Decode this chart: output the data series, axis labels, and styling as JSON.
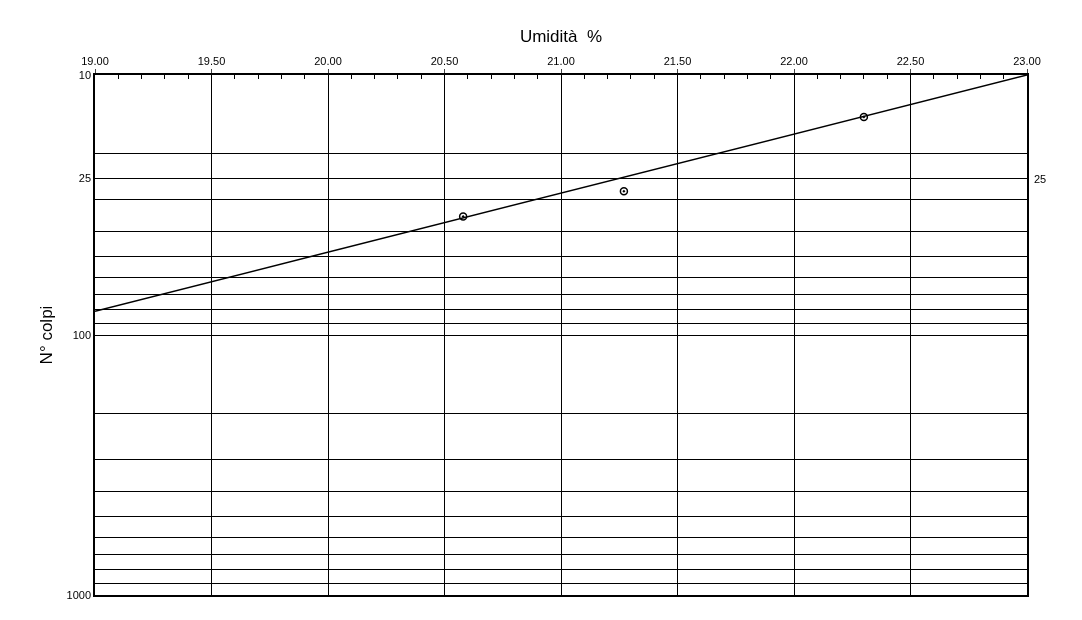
{
  "chart_data": {
    "type": "scatter",
    "xlabel": "Umidità  %",
    "ylabel": "N° colpi",
    "log": "y",
    "grid": true,
    "annotations": [
      "25"
    ],
    "xlim": [
      19,
      23
    ],
    "ylim": [
      1000,
      10
    ],
    "xticks": [
      {
        "value": 19,
        "label": "19.00"
      },
      {
        "value": 19.1,
        "label": null
      },
      {
        "value": 19.2,
        "label": null
      },
      {
        "value": 19.3,
        "label": null
      },
      {
        "value": 19.4,
        "label": null
      },
      {
        "value": 19.5,
        "label": "19.50"
      },
      {
        "value": 19.6,
        "label": null
      },
      {
        "value": 19.7,
        "label": null
      },
      {
        "value": 19.8,
        "label": null
      },
      {
        "value": 19.9,
        "label": null
      },
      {
        "value": 20,
        "label": "20.00"
      },
      {
        "value": 20.1,
        "label": null
      },
      {
        "value": 20.2,
        "label": null
      },
      {
        "value": 20.3,
        "label": null
      },
      {
        "value": 20.4,
        "label": null
      },
      {
        "value": 20.5,
        "label": "20.50"
      },
      {
        "value": 20.6,
        "label": null
      },
      {
        "value": 20.7,
        "label": null
      },
      {
        "value": 20.8,
        "label": null
      },
      {
        "value": 20.9,
        "label": null
      },
      {
        "value": 21,
        "label": "21.00"
      },
      {
        "value": 21.1,
        "label": null
      },
      {
        "value": 21.2,
        "label": null
      },
      {
        "value": 21.3,
        "label": null
      },
      {
        "value": 21.4,
        "label": null
      },
      {
        "value": 21.5,
        "label": "21.50"
      },
      {
        "value": 21.6,
        "label": null
      },
      {
        "value": 21.7,
        "label": null
      },
      {
        "value": 21.8,
        "label": null
      },
      {
        "value": 21.9,
        "label": null
      },
      {
        "value": 22,
        "label": "22.00"
      },
      {
        "value": 22.1,
        "label": null
      },
      {
        "value": 22.2,
        "label": null
      },
      {
        "value": 22.3,
        "label": null
      },
      {
        "value": 22.4,
        "label": null
      },
      {
        "value": 22.5,
        "label": "22.50"
      },
      {
        "value": 22.6,
        "label": null
      },
      {
        "value": 22.7,
        "label": null
      },
      {
        "value": 22.8,
        "label": null
      },
      {
        "value": 22.9,
        "label": null
      },
      {
        "value": 23,
        "label": "23.00"
      }
    ],
    "yticks": [
      10,
      {
        "value": 20,
        "label": null
      },
      25,
      {
        "value": 30,
        "label": null
      },
      {
        "value": 40,
        "label": null
      },
      {
        "value": 50,
        "label": null
      },
      {
        "value": 60,
        "label": null
      },
      {
        "value": 70,
        "label": null
      },
      {
        "value": 80,
        "label": null
      },
      {
        "value": 90,
        "label": null
      },
      100,
      {
        "value": 200,
        "label": null
      },
      {
        "value": 300,
        "label": null
      },
      {
        "value": 400,
        "label": null
      },
      {
        "value": 500,
        "label": null
      },
      {
        "value": 600,
        "label": null
      },
      {
        "value": 700,
        "label": null
      },
      {
        "value": 800,
        "label": null
      },
      {
        "value": 900,
        "label": null
      },
      1000
    ],
    "series": [
      {
        "color": "#000000",
        "marker": "circle",
        "x": [
          20.58,
          21.27,
          22.3
        ],
        "values": [
          35,
          28,
          14.5
        ]
      },
      {
        "type": "line",
        "color": "#000000",
        "marker": "none",
        "line_style": "solid",
        "x": [
          19,
          23
        ],
        "values": [
          81,
          10
        ]
      }
    ]
  }
}
